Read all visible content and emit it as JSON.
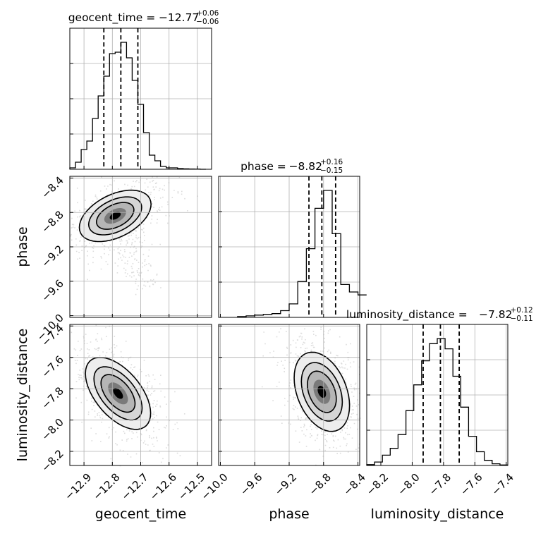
{
  "chart_data": {
    "type": "corner",
    "parameters": [
      "geocent_time",
      "phase",
      "luminosity_distance"
    ],
    "titles": [
      {
        "param": "geocent_time",
        "prefix": "geocent_time = ",
        "value": "−12.77",
        "plus": "+0.06",
        "minus": "−0.06"
      },
      {
        "param": "phase",
        "prefix": "phase = ",
        "value": "−8.82",
        "plus": "+0.16",
        "minus": "−0.15"
      },
      {
        "param": "luminosity_distance",
        "prefix": "luminosity_distance = ",
        "value": "−7.82",
        "plus": "+0.12",
        "minus": "−0.11"
      }
    ],
    "axes": {
      "geocent_time": {
        "label": "geocent_time",
        "range": [
          -12.95,
          -12.45
        ],
        "ticks": [
          -12.9,
          -12.8,
          -12.7,
          -12.6,
          -12.5
        ],
        "tick_labels": [
          "−12.9",
          "−12.8",
          "−12.7",
          "−12.6",
          "−12.5"
        ]
      },
      "phase": {
        "label": "phase",
        "range": [
          -10.02,
          -8.38
        ],
        "ticks": [
          -10.0,
          -9.6,
          -9.2,
          -8.8,
          -8.4
        ],
        "tick_labels": [
          "−10.0",
          "−9.6",
          "−9.2",
          "−8.8",
          "−8.4"
        ]
      },
      "luminosity_distance": {
        "label": "luminosity_distance",
        "range": [
          -8.29,
          -7.39
        ],
        "ticks": [
          -8.2,
          -8.0,
          -7.8,
          -7.6,
          -7.4
        ],
        "tick_labels": [
          "−8.2",
          "−8.0",
          "−7.8",
          "−7.6",
          "−7.4"
        ]
      }
    },
    "histograms": {
      "geocent_time": {
        "quantiles": [
          -12.83,
          -12.77,
          -12.71
        ],
        "bins": [
          [
            -12.95,
            0.01
          ],
          [
            -12.93,
            0.05
          ],
          [
            -12.91,
            0.14
          ],
          [
            -12.89,
            0.2
          ],
          [
            -12.87,
            0.36
          ],
          [
            -12.85,
            0.52
          ],
          [
            -12.83,
            0.66
          ],
          [
            -12.81,
            0.82
          ],
          [
            -12.79,
            0.83
          ],
          [
            -12.77,
            0.9
          ],
          [
            -12.75,
            0.79
          ],
          [
            -12.73,
            0.63
          ],
          [
            -12.71,
            0.46
          ],
          [
            -12.69,
            0.26
          ],
          [
            -12.67,
            0.1
          ],
          [
            -12.65,
            0.06
          ],
          [
            -12.63,
            0.02
          ],
          [
            -12.61,
            0.01
          ],
          [
            -12.59,
            0.01
          ],
          [
            -12.57,
            0.005
          ],
          [
            -12.55,
            0.003
          ],
          [
            -12.53,
            0.002
          ],
          [
            -12.51,
            0.001
          ],
          [
            -12.49,
            0.0
          ]
        ]
      },
      "phase": {
        "quantiles": [
          -8.97,
          -8.82,
          -8.66
        ],
        "bins": [
          [
            -9.8,
            0.005
          ],
          [
            -9.7,
            0.01
          ],
          [
            -9.6,
            0.015
          ],
          [
            -9.5,
            0.02
          ],
          [
            -9.4,
            0.025
          ],
          [
            -9.3,
            0.045
          ],
          [
            -9.2,
            0.09
          ],
          [
            -9.1,
            0.24
          ],
          [
            -9.0,
            0.46
          ],
          [
            -8.9,
            0.73
          ],
          [
            -8.8,
            0.85
          ],
          [
            -8.7,
            0.56
          ],
          [
            -8.6,
            0.22
          ],
          [
            -8.5,
            0.17
          ],
          [
            -8.4,
            0.15
          ]
        ]
      },
      "luminosity_distance": {
        "quantiles": [
          -7.93,
          -7.82,
          -7.7
        ],
        "bins": [
          [
            -8.29,
            0.005
          ],
          [
            -8.24,
            0.02
          ],
          [
            -8.19,
            0.06
          ],
          [
            -8.14,
            0.1
          ],
          [
            -8.09,
            0.18
          ],
          [
            -8.04,
            0.32
          ],
          [
            -7.99,
            0.47
          ],
          [
            -7.94,
            0.61
          ],
          [
            -7.89,
            0.71
          ],
          [
            -7.84,
            0.74
          ],
          [
            -7.79,
            0.68
          ],
          [
            -7.74,
            0.52
          ],
          [
            -7.69,
            0.34
          ],
          [
            -7.64,
            0.17
          ],
          [
            -7.59,
            0.08
          ],
          [
            -7.54,
            0.03
          ],
          [
            -7.49,
            0.01
          ],
          [
            -7.44,
            0.003
          ]
        ]
      }
    },
    "grid": true,
    "colors": {
      "hist": "#000000",
      "quantile": "#000000",
      "density_max": "#000000",
      "points": "#9a9a9a",
      "grid": "#b0b0b0"
    }
  }
}
